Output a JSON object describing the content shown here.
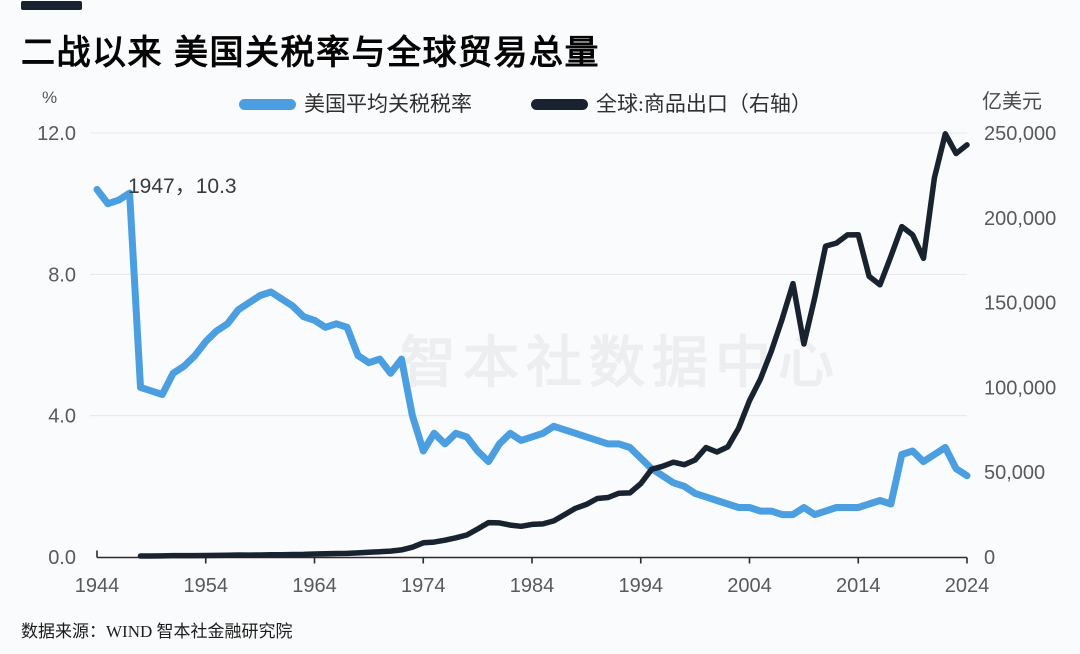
{
  "header": {
    "title": "二战以来 美国关税率与全球贸易总量"
  },
  "legend": {
    "items": [
      {
        "label": "美国平均关税税率",
        "color": "#4B9FE1"
      },
      {
        "label": "全球:商品出口（右轴）",
        "color": "#19232F"
      }
    ]
  },
  "axis_units": {
    "left": "%",
    "right": "亿美元"
  },
  "annotation": {
    "text": "1947，10.3"
  },
  "watermark": {
    "text": "智本社数据中心"
  },
  "footer": {
    "source": "数据来源：WIND 智本社金融研究院"
  },
  "colors": {
    "tariff_line": "#4B9FE1",
    "exports_line": "#19232F",
    "grid": "#e8e8ec",
    "axis": "#2b2b2b",
    "tick_text": "#595959",
    "background": "#fafbfc"
  },
  "chart_data": {
    "type": "line",
    "title": "二战以来 美国关税率与全球贸易总量",
    "grid": "horizontal",
    "legend_position": "top",
    "x_axis": {
      "range": [
        1944,
        2024
      ],
      "ticks": [
        1944,
        1954,
        1964,
        1974,
        1984,
        1994,
        2004,
        2014,
        2024
      ]
    },
    "left_axis": {
      "unit": "%",
      "range": [
        0,
        12
      ],
      "ticks": [
        0,
        4,
        8,
        12
      ]
    },
    "right_axis": {
      "unit": "亿美元",
      "range": [
        0,
        250000
      ],
      "ticks": [
        0,
        50000,
        100000,
        150000,
        200000,
        250000
      ]
    },
    "annotations": [
      {
        "year": 1947,
        "value": 10.3,
        "text": "1947，10.3"
      }
    ],
    "series": [
      {
        "name": "美国平均关税税率",
        "axis": "left",
        "color": "#4B9FE1",
        "width": 7,
        "x": [
          1944,
          1945,
          1946,
          1947,
          1948,
          1949,
          1950,
          1951,
          1952,
          1953,
          1954,
          1955,
          1956,
          1957,
          1958,
          1959,
          1960,
          1961,
          1962,
          1963,
          1964,
          1965,
          1966,
          1967,
          1968,
          1969,
          1970,
          1971,
          1972,
          1973,
          1974,
          1975,
          1976,
          1977,
          1978,
          1979,
          1980,
          1981,
          1982,
          1983,
          1984,
          1985,
          1986,
          1987,
          1988,
          1989,
          1990,
          1991,
          1992,
          1993,
          1994,
          1995,
          1996,
          1997,
          1998,
          1999,
          2000,
          2001,
          2002,
          2003,
          2004,
          2005,
          2006,
          2007,
          2008,
          2009,
          2010,
          2011,
          2012,
          2013,
          2014,
          2015,
          2016,
          2017,
          2018,
          2019,
          2020,
          2021,
          2022,
          2023,
          2024
        ],
        "y": [
          10.4,
          10.0,
          10.1,
          10.3,
          4.8,
          4.7,
          4.6,
          5.2,
          5.4,
          5.7,
          6.1,
          6.4,
          6.6,
          7.0,
          7.2,
          7.4,
          7.5,
          7.3,
          7.1,
          6.8,
          6.7,
          6.5,
          6.6,
          6.5,
          5.7,
          5.5,
          5.6,
          5.2,
          5.6,
          4.0,
          3.0,
          3.5,
          3.2,
          3.5,
          3.4,
          3.0,
          2.7,
          3.2,
          3.5,
          3.3,
          3.4,
          3.5,
          3.7,
          3.6,
          3.5,
          3.4,
          3.3,
          3.2,
          3.2,
          3.1,
          2.8,
          2.5,
          2.3,
          2.1,
          2.0,
          1.8,
          1.7,
          1.6,
          1.5,
          1.4,
          1.4,
          1.3,
          1.3,
          1.2,
          1.2,
          1.4,
          1.2,
          1.3,
          1.4,
          1.4,
          1.4,
          1.5,
          1.6,
          1.5,
          2.9,
          3.0,
          2.7,
          2.9,
          3.1,
          2.5,
          2.3
        ]
      },
      {
        "name": "全球:商品出口（右轴）",
        "axis": "right",
        "color": "#19232F",
        "width": 5.5,
        "x": [
          1948,
          1949,
          1950,
          1951,
          1952,
          1953,
          1954,
          1955,
          1956,
          1957,
          1958,
          1959,
          1960,
          1961,
          1962,
          1963,
          1964,
          1965,
          1966,
          1967,
          1968,
          1969,
          1970,
          1971,
          1972,
          1973,
          1974,
          1975,
          1976,
          1977,
          1978,
          1979,
          1980,
          1981,
          1982,
          1983,
          1984,
          1985,
          1986,
          1987,
          1988,
          1989,
          1990,
          1991,
          1992,
          1993,
          1994,
          1995,
          1996,
          1997,
          1998,
          1999,
          2000,
          2001,
          2002,
          2003,
          2004,
          2005,
          2006,
          2007,
          2008,
          2009,
          2010,
          2011,
          2012,
          2013,
          2014,
          2015,
          2016,
          2017,
          2018,
          2019,
          2020,
          2021,
          2022,
          2023,
          2024
        ],
        "y": [
          590,
          600,
          620,
          850,
          840,
          850,
          860,
          950,
          1050,
          1150,
          1100,
          1160,
          1300,
          1350,
          1450,
          1550,
          1750,
          1900,
          2050,
          2150,
          2400,
          2750,
          3150,
          3500,
          4200,
          5800,
          8400,
          8800,
          9900,
          11300,
          13000,
          16500,
          20300,
          20100,
          18800,
          18100,
          19200,
          19500,
          21300,
          25000,
          28700,
          31000,
          34500,
          35100,
          37600,
          37800,
          43300,
          51700,
          53500,
          55900,
          54400,
          57200,
          64500,
          61900,
          64900,
          75900,
          92200,
          104900,
          121300,
          140200,
          161200,
          125600,
          153000,
          183300,
          185100,
          189900,
          190000,
          165500,
          160500,
          177300,
          194800,
          190000,
          176100,
          223500,
          249500,
          237900,
          243000
        ]
      }
    ]
  }
}
